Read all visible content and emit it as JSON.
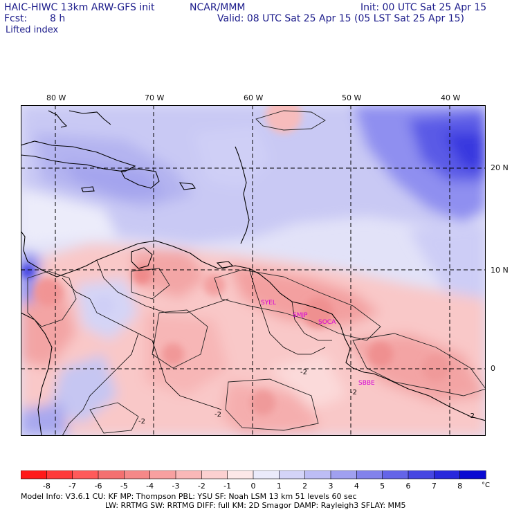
{
  "header": {
    "model_line": "HAIC-HIWC 13km ARW-GFS init",
    "org": "NCAR/MMM",
    "init": "Init: 00 UTC Sat 25 Apr 15",
    "fcst_label": "Fcst:",
    "fcst_value": "8 h",
    "valid": "Valid: 08 UTC Sat 25 Apr 15 (05 LST Sat 25 Apr 15)",
    "field": "Lifted index"
  },
  "map": {
    "lon_labels": [
      "80 W",
      "70 W",
      "60 W",
      "50 W",
      "40 W"
    ],
    "lat_labels": [
      "20 N",
      "10 N",
      "0"
    ],
    "stations": [
      "SYEL",
      "SMJP",
      "SOCA",
      "SBBE"
    ],
    "contour_labels": [
      "-2",
      "-2",
      "-2",
      "-2",
      "-2"
    ]
  },
  "colorbar": {
    "ticks": [
      "-8",
      "-7",
      "-6",
      "-5",
      "-4",
      "-3",
      "-2",
      "-1",
      "0",
      "1",
      "2",
      "3",
      "4",
      "5",
      "6",
      "7",
      "8"
    ],
    "unit": "°C",
    "colors": [
      "#ff1a1a",
      "#ff3a3a",
      "#ff5a5a",
      "#f47070",
      "#f58888",
      "#f8a0a0",
      "#fab8b8",
      "#fcd0d0",
      "#fde8e8",
      "#ebebfb",
      "#d4d4f8",
      "#bdbdf5",
      "#a0a0f0",
      "#8282ec",
      "#6464e8",
      "#4646e2",
      "#2828dc",
      "#0a0ad2"
    ]
  },
  "footer": {
    "line1": "Model Info: V3.6.1     CU: KF      MP: Thompson     PBL: YSU        SF: Noah LSM     13 km   51 levels   60 sec",
    "line2": "LW: RRTMG     SW: RRTMG    DIFF: full    KM: 2D Smagor DAMP: Rayleigh3   SFLAY: MM5"
  }
}
